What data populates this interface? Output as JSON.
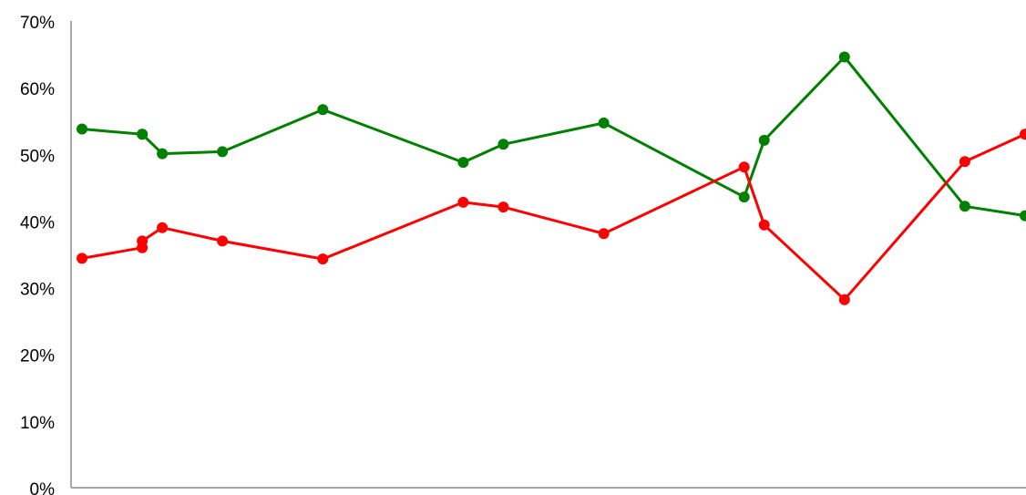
{
  "chart_data": {
    "type": "line",
    "title": "",
    "xlabel": "",
    "ylabel": "",
    "ylim": [
      0,
      70
    ],
    "y_ticks": [
      "0%",
      "10%",
      "20%",
      "30%",
      "40%",
      "50%",
      "60%",
      "70%"
    ],
    "y_tick_values": [
      0,
      10,
      20,
      30,
      40,
      50,
      60,
      70
    ],
    "x_range": [
      0,
      47
    ],
    "grid": false,
    "legend": "none",
    "x": [
      0,
      3,
      3,
      4,
      7,
      12,
      19,
      21,
      26,
      33,
      34,
      38,
      44,
      47
    ],
    "series": [
      {
        "color": "#008000",
        "values": [
          53.8,
          53.0,
          53.0,
          50.1,
          50.4,
          56.7,
          48.8,
          51.5,
          54.7,
          43.6,
          52.1,
          64.6,
          42.2,
          40.8
        ]
      },
      {
        "color": "#ff0000",
        "values": [
          34.4,
          36.0,
          37.0,
          39.0,
          37.0,
          34.3,
          42.8,
          42.1,
          38.1,
          48.1,
          39.4,
          28.2,
          48.9,
          53.0
        ]
      }
    ]
  }
}
